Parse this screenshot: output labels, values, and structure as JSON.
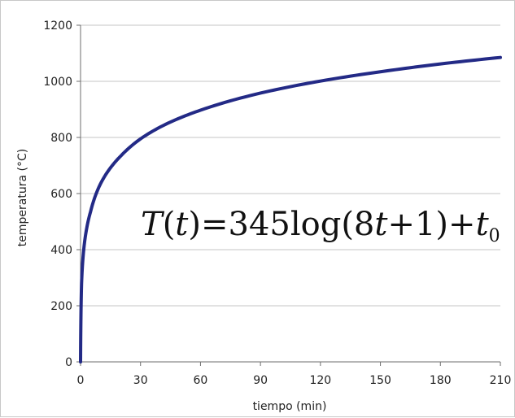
{
  "chart_data": {
    "type": "line",
    "xlabel": "tiempo (min)",
    "ylabel": "temperatura (°C)",
    "xlim": [
      0,
      210
    ],
    "ylim": [
      0,
      1200
    ],
    "x_ticks": [
      0,
      30,
      60,
      90,
      120,
      150,
      180,
      210
    ],
    "y_ticks": [
      0,
      200,
      400,
      600,
      800,
      1000,
      1200
    ],
    "grid": "horizontal",
    "annotation": {
      "T": "T",
      "open1": "(",
      "t1": "t",
      "close1": ")=345log(8",
      "t2": "t",
      "rest": "+1)+",
      "t3": "t",
      "sub": "0"
    },
    "series": [
      {
        "color": "#232a86",
        "x": [
          0,
          0.5,
          1,
          2,
          3,
          5,
          8,
          10,
          15,
          20,
          30,
          45,
          60,
          90,
          120,
          150,
          180,
          210
        ],
        "y": [
          0,
          278,
          349,
          426,
          473,
          535,
          603,
          635,
          692,
          733,
          795,
          855,
          897,
          958,
          1001,
          1034,
          1062,
          1085
        ]
      }
    ]
  }
}
